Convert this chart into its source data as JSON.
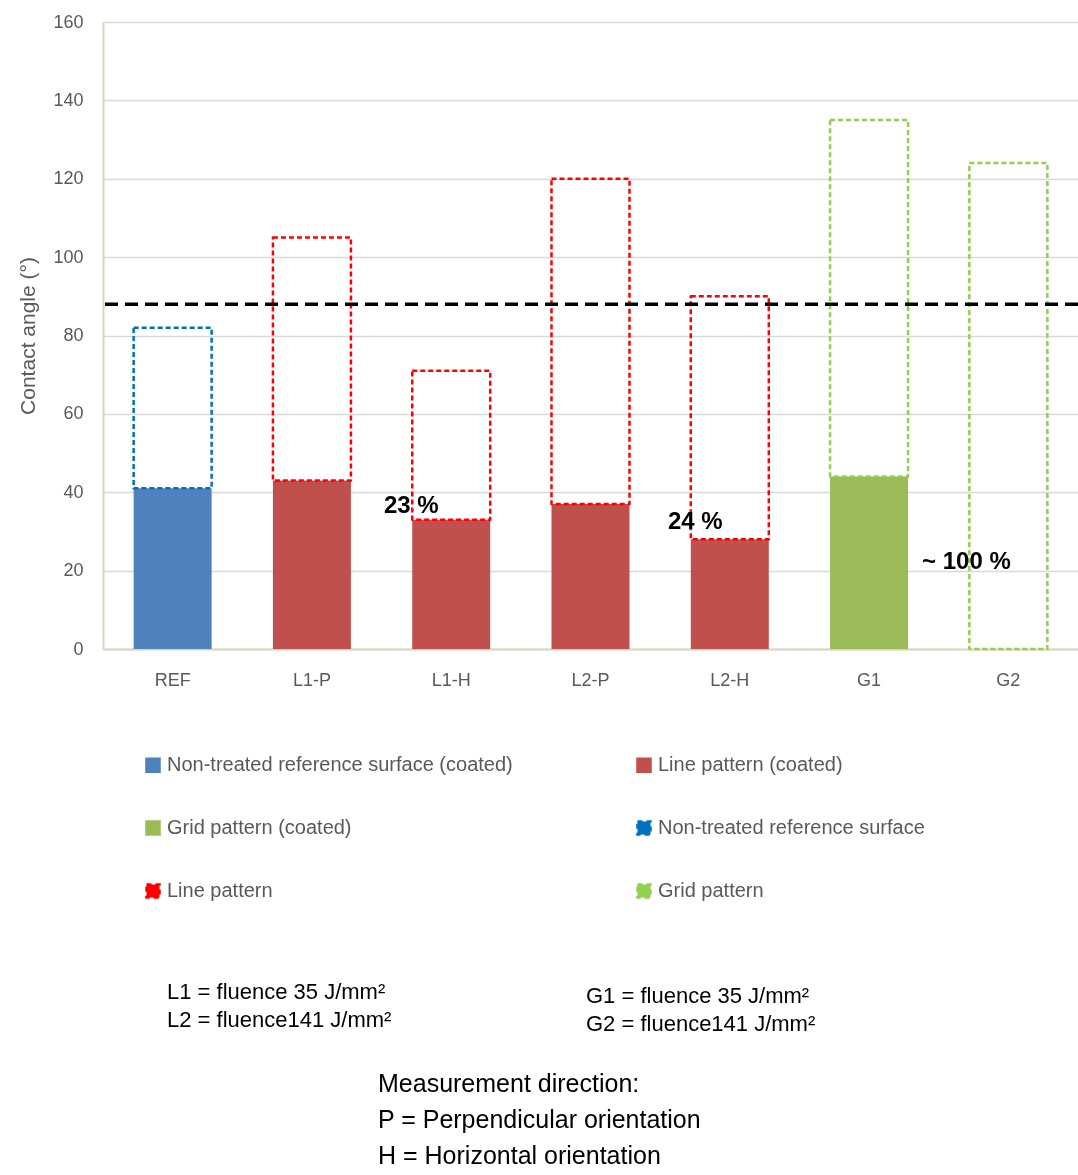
{
  "chart_data": {
    "type": "bar",
    "stacked": true,
    "ylabel": "Contact angle (°)",
    "categories": [
      "REF",
      "L1-P",
      "L1-H",
      "L2-P",
      "L2-H",
      "G1",
      "G2"
    ],
    "ylim": [
      0,
      160
    ],
    "yticks": [
      0,
      20,
      40,
      60,
      80,
      100,
      120,
      140,
      160
    ],
    "grid": "y",
    "legend": "bottom",
    "series": [
      {
        "name": "Non-treated reference surface (coated)",
        "color": "#4f81bd",
        "values": [
          41,
          null,
          null,
          null,
          null,
          null,
          null
        ]
      },
      {
        "name": "Line pattern (coated)",
        "color": "#c0504d",
        "values": [
          null,
          43,
          33,
          37,
          28,
          null,
          null
        ]
      },
      {
        "name": "Grid pattern (coated)",
        "color": "#9bbb59",
        "values": [
          null,
          null,
          null,
          null,
          null,
          44,
          null
        ]
      },
      {
        "name": "Non-treated reference surface",
        "color": "#0070c0",
        "line_style": "dashed",
        "values": [
          41,
          null,
          null,
          null,
          null,
          null,
          null
        ]
      },
      {
        "name": "Line pattern",
        "color": "#ff0000",
        "line_style": "dashed",
        "values": [
          null,
          62,
          38,
          83,
          62,
          null,
          null
        ]
      },
      {
        "name": "Grid pattern",
        "color": "#92d050",
        "line_style": "dashed",
        "values": [
          null,
          null,
          null,
          null,
          null,
          91,
          124
        ]
      }
    ],
    "ref_lines": [
      {
        "axis": "y",
        "value": 88,
        "color": "#000000",
        "line_style": "dashed"
      }
    ],
    "annotations": [
      "23 %",
      "24 %",
      "~ 100 %",
      "L1 = fluence 35 J/mm²",
      "L2 = fluence141 J/mm²",
      "G1 = fluence 35 J/mm²",
      "G2 = fluence141 J/mm²",
      "Measurement direction:",
      "P = Perpendicular orientation",
      "H = Horizontal orientation"
    ]
  }
}
